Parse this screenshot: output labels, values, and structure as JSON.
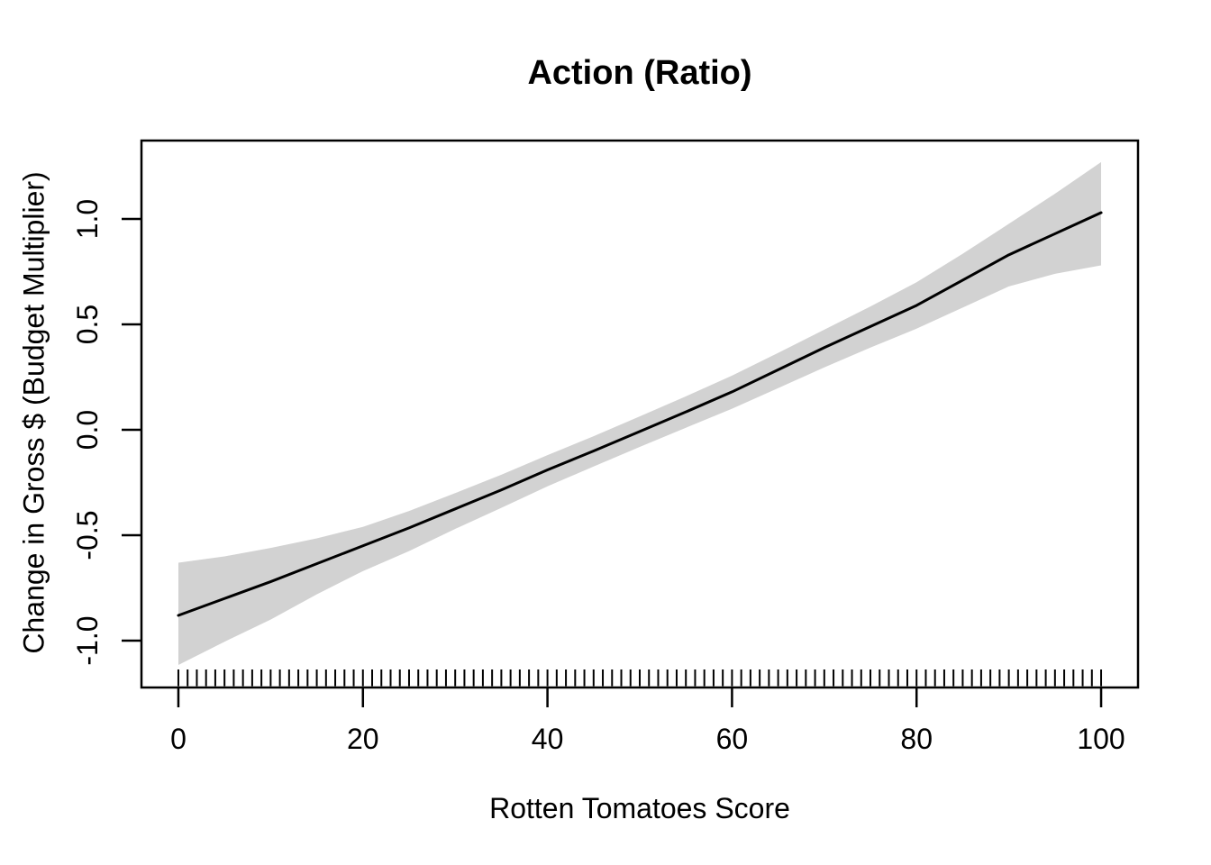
{
  "figure": {
    "background": "#ffffff"
  },
  "chart_data": {
    "type": "line",
    "title": "Action (Ratio)",
    "xlabel": "Rotten Tomatoes Score",
    "ylabel": "Change in Gross $ (Budget Multiplier)",
    "xlim": [
      -4,
      104
    ],
    "ylim": [
      -1.222,
      1.372
    ],
    "x_ticks": [
      0,
      20,
      40,
      60,
      80,
      100
    ],
    "x_tick_labels": [
      "0",
      "20",
      "40",
      "60",
      "80",
      "100"
    ],
    "y_ticks": [
      -1.0,
      -0.5,
      0.0,
      0.5,
      1.0
    ],
    "y_tick_labels": [
      "-1.0",
      "-0.5",
      "0.0",
      "0.5",
      "1.0"
    ],
    "grid": false,
    "legend": "none",
    "x": [
      0,
      5,
      10,
      15,
      20,
      25,
      30,
      35,
      40,
      45,
      50,
      55,
      60,
      65,
      70,
      75,
      80,
      85,
      90,
      95,
      100
    ],
    "series": [
      {
        "name": "gam-fit",
        "values": [
          -0.88,
          -0.8,
          -0.72,
          -0.635,
          -0.55,
          -0.465,
          -0.375,
          -0.285,
          -0.19,
          -0.1,
          -0.008,
          0.085,
          0.18,
          0.285,
          0.39,
          0.49,
          0.59,
          0.71,
          0.83,
          0.93,
          1.03
        ]
      },
      {
        "name": "ci-upper",
        "values": [
          -0.63,
          -0.6,
          -0.56,
          -0.515,
          -0.46,
          -0.385,
          -0.3,
          -0.213,
          -0.12,
          -0.03,
          0.064,
          0.159,
          0.257,
          0.365,
          0.475,
          0.585,
          0.7,
          0.835,
          0.977,
          1.12,
          1.27
        ]
      },
      {
        "name": "ci-lower",
        "values": [
          -1.115,
          -1.005,
          -0.9,
          -0.78,
          -0.67,
          -0.575,
          -0.47,
          -0.37,
          -0.268,
          -0.174,
          -0.081,
          0.01,
          0.1,
          0.198,
          0.296,
          0.39,
          0.48,
          0.58,
          0.68,
          0.74,
          0.78
        ]
      }
    ],
    "colors": {
      "fit_line": "#000000",
      "ci_band": "#d2d2d2",
      "axis": "#000000",
      "rug": "#000000"
    },
    "rug": {
      "from": 0,
      "to": 100,
      "by": 1
    }
  }
}
